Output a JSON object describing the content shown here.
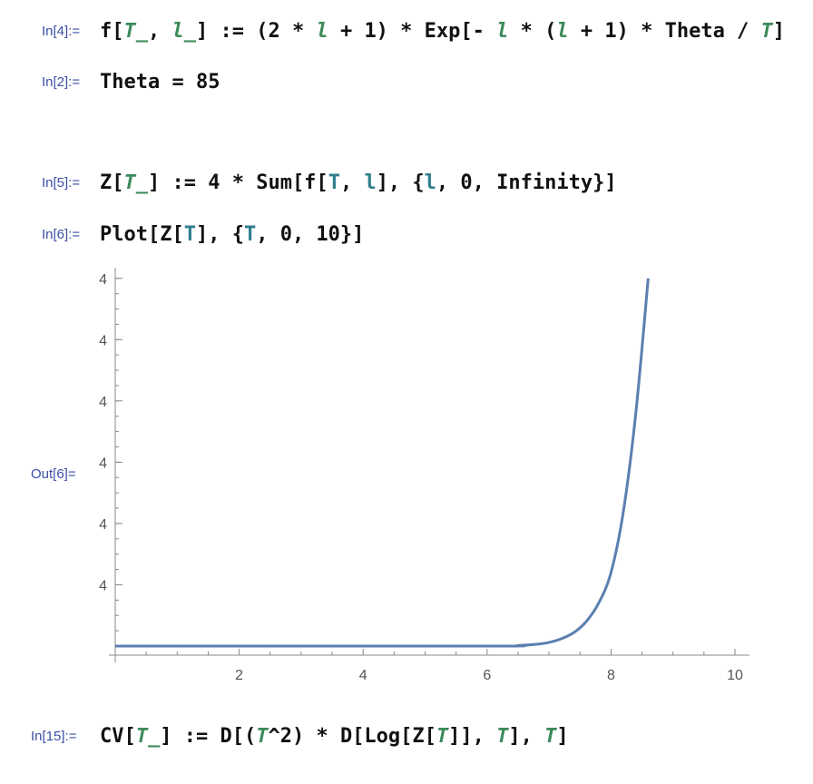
{
  "cells": [
    {
      "label": "In[4]:=",
      "tokens": [
        {
          "t": "f[",
          "c": ""
        },
        {
          "t": "T_",
          "c": "local"
        },
        {
          "t": ", ",
          "c": ""
        },
        {
          "t": "l_",
          "c": "local"
        },
        {
          "t": "] := (2 * ",
          "c": ""
        },
        {
          "t": "l",
          "c": "local"
        },
        {
          "t": " + 1) * Exp[- ",
          "c": ""
        },
        {
          "t": "l",
          "c": "local"
        },
        {
          "t": " * (",
          "c": ""
        },
        {
          "t": "l",
          "c": "local"
        },
        {
          "t": " + 1) * Theta / ",
          "c": ""
        },
        {
          "t": "T",
          "c": "local"
        },
        {
          "t": "]",
          "c": ""
        }
      ]
    },
    {
      "label": "In[2]:=",
      "tokens": [
        {
          "t": "Theta = 85",
          "c": ""
        }
      ]
    },
    {
      "label": "In[5]:=",
      "tokens": [
        {
          "t": "Z[",
          "c": ""
        },
        {
          "t": "T_",
          "c": "local"
        },
        {
          "t": "] := 4 * Sum[f[",
          "c": ""
        },
        {
          "t": "T",
          "c": "global"
        },
        {
          "t": ", ",
          "c": ""
        },
        {
          "t": "l",
          "c": "global"
        },
        {
          "t": "], {",
          "c": ""
        },
        {
          "t": "l",
          "c": "global"
        },
        {
          "t": ", 0, Infinity}]",
          "c": ""
        }
      ]
    },
    {
      "label": "In[6]:=",
      "tokens": [
        {
          "t": "Plot[Z[",
          "c": ""
        },
        {
          "t": "T",
          "c": "global"
        },
        {
          "t": "], {",
          "c": ""
        },
        {
          "t": "T",
          "c": "global"
        },
        {
          "t": ", 0, 10}]",
          "c": ""
        }
      ]
    },
    {
      "label": "In[15]:=",
      "tokens": [
        {
          "t": "CV[",
          "c": ""
        },
        {
          "t": "T_",
          "c": "local"
        },
        {
          "t": "] := D[(",
          "c": ""
        },
        {
          "t": "T",
          "c": "local"
        },
        {
          "t": "^2) * D[Log[Z[",
          "c": ""
        },
        {
          "t": "T",
          "c": "local"
        },
        {
          "t": "]], ",
          "c": ""
        },
        {
          "t": "T",
          "c": "local"
        },
        {
          "t": "], ",
          "c": ""
        },
        {
          "t": "T",
          "c": "local"
        },
        {
          "t": "]",
          "c": ""
        }
      ]
    }
  ],
  "output_label": "Out[6]=",
  "colors": {
    "label": "#3b4fa8",
    "local_var": "#3b8a5a",
    "global_var": "#2f7e8d",
    "curve": "#5b7fb0",
    "axis": "#888888"
  },
  "chart_data": {
    "type": "line",
    "title": "",
    "xlabel": "",
    "ylabel": "",
    "xlim": [
      0,
      10
    ],
    "x_ticks": [
      2,
      4,
      6,
      8,
      10
    ],
    "x_tick_labels": [
      "2",
      "4",
      "6",
      "8",
      "10"
    ],
    "y_ticks": [
      1,
      2,
      3,
      4,
      5,
      6
    ],
    "y_tick_labels": [
      "4",
      "4",
      "4",
      "4",
      "4",
      "4"
    ],
    "ylim": [
      0,
      6.1
    ],
    "series": [
      {
        "name": "Z[T]",
        "x": [
          0.0,
          6.0,
          6.5,
          6.8,
          7.0,
          7.2,
          7.4,
          7.6,
          7.8,
          8.0,
          8.2,
          8.4,
          8.6
        ],
        "y": [
          0.0,
          0.0,
          0.01,
          0.03,
          0.06,
          0.12,
          0.22,
          0.4,
          0.7,
          1.2,
          2.2,
          3.8,
          6.0
        ]
      }
    ],
    "grid": false
  }
}
